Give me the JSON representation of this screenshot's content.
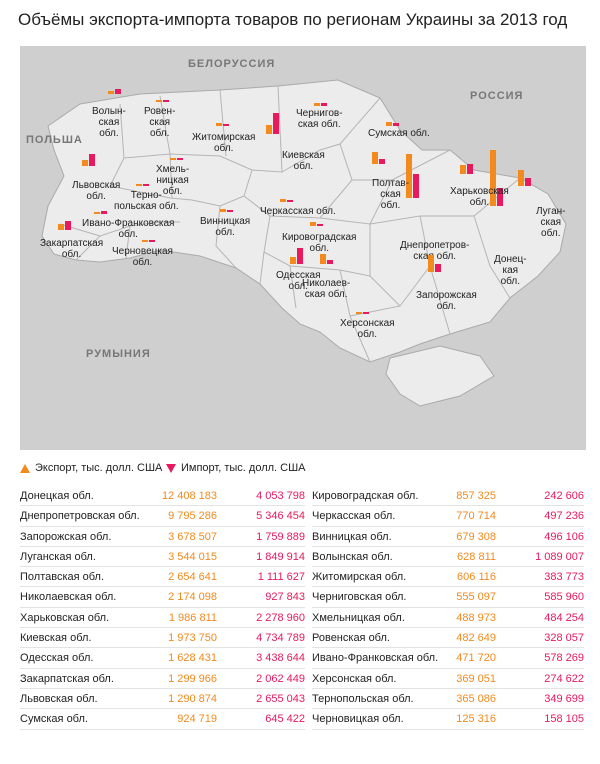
{
  "title": "Объёмы экспорта-импорта товаров по регионам Украины за 2013 год",
  "colors": {
    "export": "#f28a1e",
    "import": "#e8195c",
    "land": "#ececec",
    "border": "#aaaaaa",
    "sea": "#cfcfcf"
  },
  "countries": {
    "belarus": "БЕЛОРУССИЯ",
    "russia": "РОССИЯ",
    "poland": "ПОЛЬША",
    "romania": "РУМЫНИЯ"
  },
  "legend": {
    "export": "Экспорт, тыс. долл. США",
    "import": "Импорт, тыс. долл. США"
  },
  "regions": [
    {
      "id": "donetsk",
      "label": [
        "Донец-",
        "кая",
        "обл."
      ],
      "table_name": "Донецкая обл.",
      "export": "12 408 183",
      "import": "4 053 798",
      "export_value": 12408183,
      "import_value": 4053798
    },
    {
      "id": "dnipro",
      "label": [
        "Днепропетров-",
        "ская обл."
      ],
      "table_name": "Днепропетровская обл.",
      "export": "9 795 286",
      "import": "5 346 454",
      "export_value": 9795286,
      "import_value": 5346454
    },
    {
      "id": "zaporizhzhia",
      "label": [
        "Запорожская",
        "обл."
      ],
      "table_name": "Запорожская обл.",
      "export": "3 678 507",
      "import": "1 759 889",
      "export_value": 3678507,
      "import_value": 1759889
    },
    {
      "id": "luhansk",
      "label": [
        "Луган-",
        "ская",
        "обл."
      ],
      "table_name": "Луганская обл.",
      "export": "3 544 015",
      "import": "1 849 914",
      "export_value": 3544015,
      "import_value": 1849914
    },
    {
      "id": "poltava",
      "label": [
        "Полтав-",
        "ская",
        "обл."
      ],
      "table_name": "Полтавская обл.",
      "export": "2 654 641",
      "import": "1 111 627",
      "export_value": 2654641,
      "import_value": 1111627
    },
    {
      "id": "mykolaiv",
      "label": [
        "Николаев-",
        "ская обл."
      ],
      "table_name": "Николаевская обл.",
      "export": "2 174 098",
      "import": "927 843",
      "export_value": 2174098,
      "import_value": 927843
    },
    {
      "id": "kharkiv",
      "label": [
        "Харьковская",
        "обл."
      ],
      "table_name": "Харьковская обл.",
      "export": "1 986 811",
      "import": "2 278 960",
      "export_value": 1986811,
      "import_value": 2278960
    },
    {
      "id": "kyiv",
      "label": [
        "Киевская",
        "обл."
      ],
      "table_name": "Киевская обл.",
      "export": "1 973 750",
      "import": "4 734 789",
      "export_value": 1973750,
      "import_value": 4734789
    },
    {
      "id": "odesa",
      "label": [
        "Одесская",
        "обл."
      ],
      "table_name": "Одесская обл.",
      "export": "1 628 431",
      "import": "3 438 644",
      "export_value": 1628431,
      "import_value": 3438644
    },
    {
      "id": "zakarpattia",
      "label": [
        "Закарпатская",
        "обл."
      ],
      "table_name": "Закарпатская обл.",
      "export": "1 299 966",
      "import": "2 062 449",
      "export_value": 1299966,
      "import_value": 2062449
    },
    {
      "id": "lviv",
      "label": [
        "Львовская",
        "обл."
      ],
      "table_name": "Львовская обл.",
      "export": "1 290 874",
      "import": "2 655 043",
      "export_value": 1290874,
      "import_value": 2655043
    },
    {
      "id": "sumy",
      "label": [
        "Сумская обл."
      ],
      "table_name": "Сумская обл.",
      "export": "924 719",
      "import": "645 422",
      "export_value": 924719,
      "import_value": 645422
    },
    {
      "id": "kirovohrad",
      "label": [
        "Кировоградская",
        "обл."
      ],
      "table_name": "Кировоградская обл.",
      "export": "857 325",
      "import": "242 606",
      "export_value": 857325,
      "import_value": 242606
    },
    {
      "id": "cherkasy",
      "label": [
        "Черкасская обл."
      ],
      "table_name": "Черкасская обл.",
      "export": "770 714",
      "import": "497 236",
      "export_value": 770714,
      "import_value": 497236
    },
    {
      "id": "vinnytsia",
      "label": [
        "Винницкая",
        "обл."
      ],
      "table_name": "Винницкая обл.",
      "export": "679 308",
      "import": "496 106",
      "export_value": 679308,
      "import_value": 496106
    },
    {
      "id": "volyn",
      "label": [
        "Волын-",
        "ская",
        "обл."
      ],
      "table_name": "Волынская обл.",
      "export": "628 811",
      "import": "1 089 007",
      "export_value": 628811,
      "import_value": 1089007
    },
    {
      "id": "zhytomyr",
      "label": [
        "Житомирская",
        "обл."
      ],
      "table_name": "Житомирская обл.",
      "export": "606 116",
      "import": "383 773",
      "export_value": 606116,
      "import_value": 383773
    },
    {
      "id": "chernihiv",
      "label": [
        "Чернигов-",
        "ская обл."
      ],
      "table_name": "Черниговская обл.",
      "export": "555 097",
      "import": "585 960",
      "export_value": 555097,
      "import_value": 585960
    },
    {
      "id": "khmelnytskyi",
      "label": [
        "Хмель-",
        "ницкая",
        "обл."
      ],
      "table_name": "Хмельницкая обл.",
      "export": "488 973",
      "import": "484 254",
      "export_value": 488973,
      "import_value": 484254
    },
    {
      "id": "rivne",
      "label": [
        "Ровен-",
        "ская",
        "обл."
      ],
      "table_name": "Ровенская обл.",
      "export": "482 649",
      "import": "328 057",
      "export_value": 482649,
      "import_value": 328057
    },
    {
      "id": "ivano_frankivsk",
      "label": [
        "Ивано-Франковская",
        "обл."
      ],
      "table_name": "Ивано-Франковская обл.",
      "export": "471 720",
      "import": "578 269",
      "export_value": 471720,
      "import_value": 578269
    },
    {
      "id": "kherson",
      "label": [
        "Херсонская",
        "обл."
      ],
      "table_name": "Херсонская обл.",
      "export": "369 051",
      "import": "274 622",
      "export_value": 369051,
      "import_value": 274622
    },
    {
      "id": "ternopil",
      "label": [
        "Терно-",
        "польская обл."
      ],
      "table_name": "Тернопольская обл.",
      "export": "365 086",
      "import": "349 699",
      "export_value": 365086,
      "import_value": 349699
    },
    {
      "id": "chernivtsi",
      "label": [
        "Черновецкая",
        "обл."
      ],
      "table_name": "Черновицкая обл.",
      "export": "125 316",
      "import": "158 105",
      "export_value": 125316,
      "import_value": 158105
    }
  ]
}
